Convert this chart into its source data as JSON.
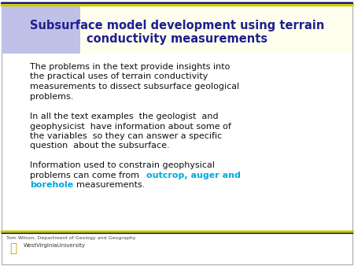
{
  "title_line1": "Subsurface model development using terrain",
  "title_line2": "conductivity measurements",
  "title_color": "#1F1F8F",
  "title_bg_left": "#B8B8E8",
  "title_bg_right": "#FFFFCC",
  "body_color": "#111111",
  "highlight_color": "#00AADD",
  "footer_text": "Tom Wilson, Department of Geology and Geography",
  "footer_color": "#444444",
  "bg_color": "#FFFFFF",
  "sep_yellow": "#CCCC00",
  "sep_blue": "#000080",
  "wvu_gold": "#C8A000",
  "wvu_text_color": "#333333"
}
